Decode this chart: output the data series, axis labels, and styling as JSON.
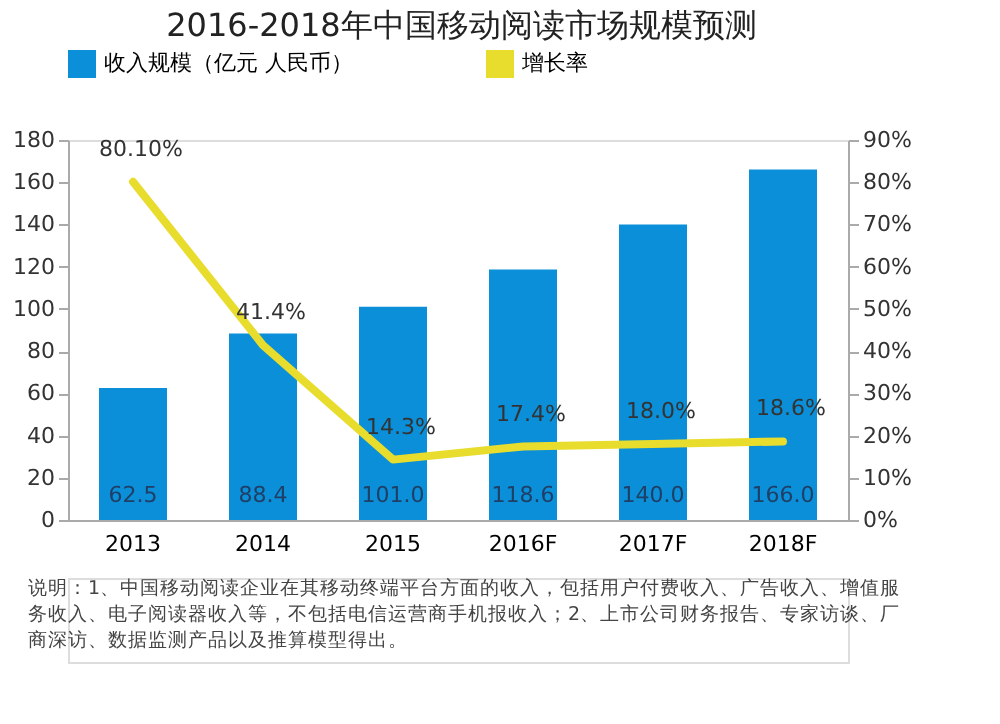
{
  "chart_data": {
    "type": "bar",
    "title": "2016-2018年中国移动阅读市场规模预测",
    "categories": [
      "2013",
      "2014",
      "2015",
      "2016F",
      "2017F",
      "2018F"
    ],
    "series": [
      {
        "name": "收入规模（亿元 人民币）",
        "color": "#0a8fd8",
        "values": [
          62.5,
          88.4,
          101.0,
          118.6,
          140.0,
          166.0
        ],
        "value_labels": [
          "62.5",
          "88.4",
          "101.0",
          "118.6",
          "140.0",
          "166.0"
        ]
      },
      {
        "name": "增长率",
        "type": "line",
        "axis": "y2",
        "color": "#e8dc2c",
        "values": [
          80.1,
          41.4,
          14.3,
          17.4,
          18.0,
          18.6
        ],
        "value_labels": [
          "80.10%",
          "41.4%",
          "14.3%",
          "17.4%",
          "18.0%",
          "18.6%"
        ]
      }
    ],
    "ylim": [
      0,
      180
    ],
    "yticks": [
      0,
      20,
      40,
      60,
      80,
      100,
      120,
      140,
      160,
      180
    ],
    "y2lim": [
      0,
      90
    ],
    "y2ticks": [
      {
        "value": 0,
        "label": "0%"
      },
      {
        "value": 10,
        "label": "10%"
      },
      {
        "value": 20,
        "label": "20%"
      },
      {
        "value": 30,
        "label": "30%"
      },
      {
        "value": 40,
        "label": "40%"
      },
      {
        "value": 50,
        "label": "50%"
      },
      {
        "value": 60,
        "label": "60%"
      },
      {
        "value": 70,
        "label": "70%"
      },
      {
        "value": 80,
        "label": "80%"
      },
      {
        "value": 90,
        "label": "90%"
      }
    ],
    "legend": "top",
    "grid": false,
    "marker": "none",
    "annotations": [
      "说明：1、中国移动阅读企业在其移动终端平台方面的收入，包括用户付费收入、广告收入、增值服务收入、电子阅读器收入等，不包括电信运营商手机报收入；2、上市公司财务报告、专家访谈、厂商深访、数据监测产品以及推算模型得出。"
    ]
  }
}
